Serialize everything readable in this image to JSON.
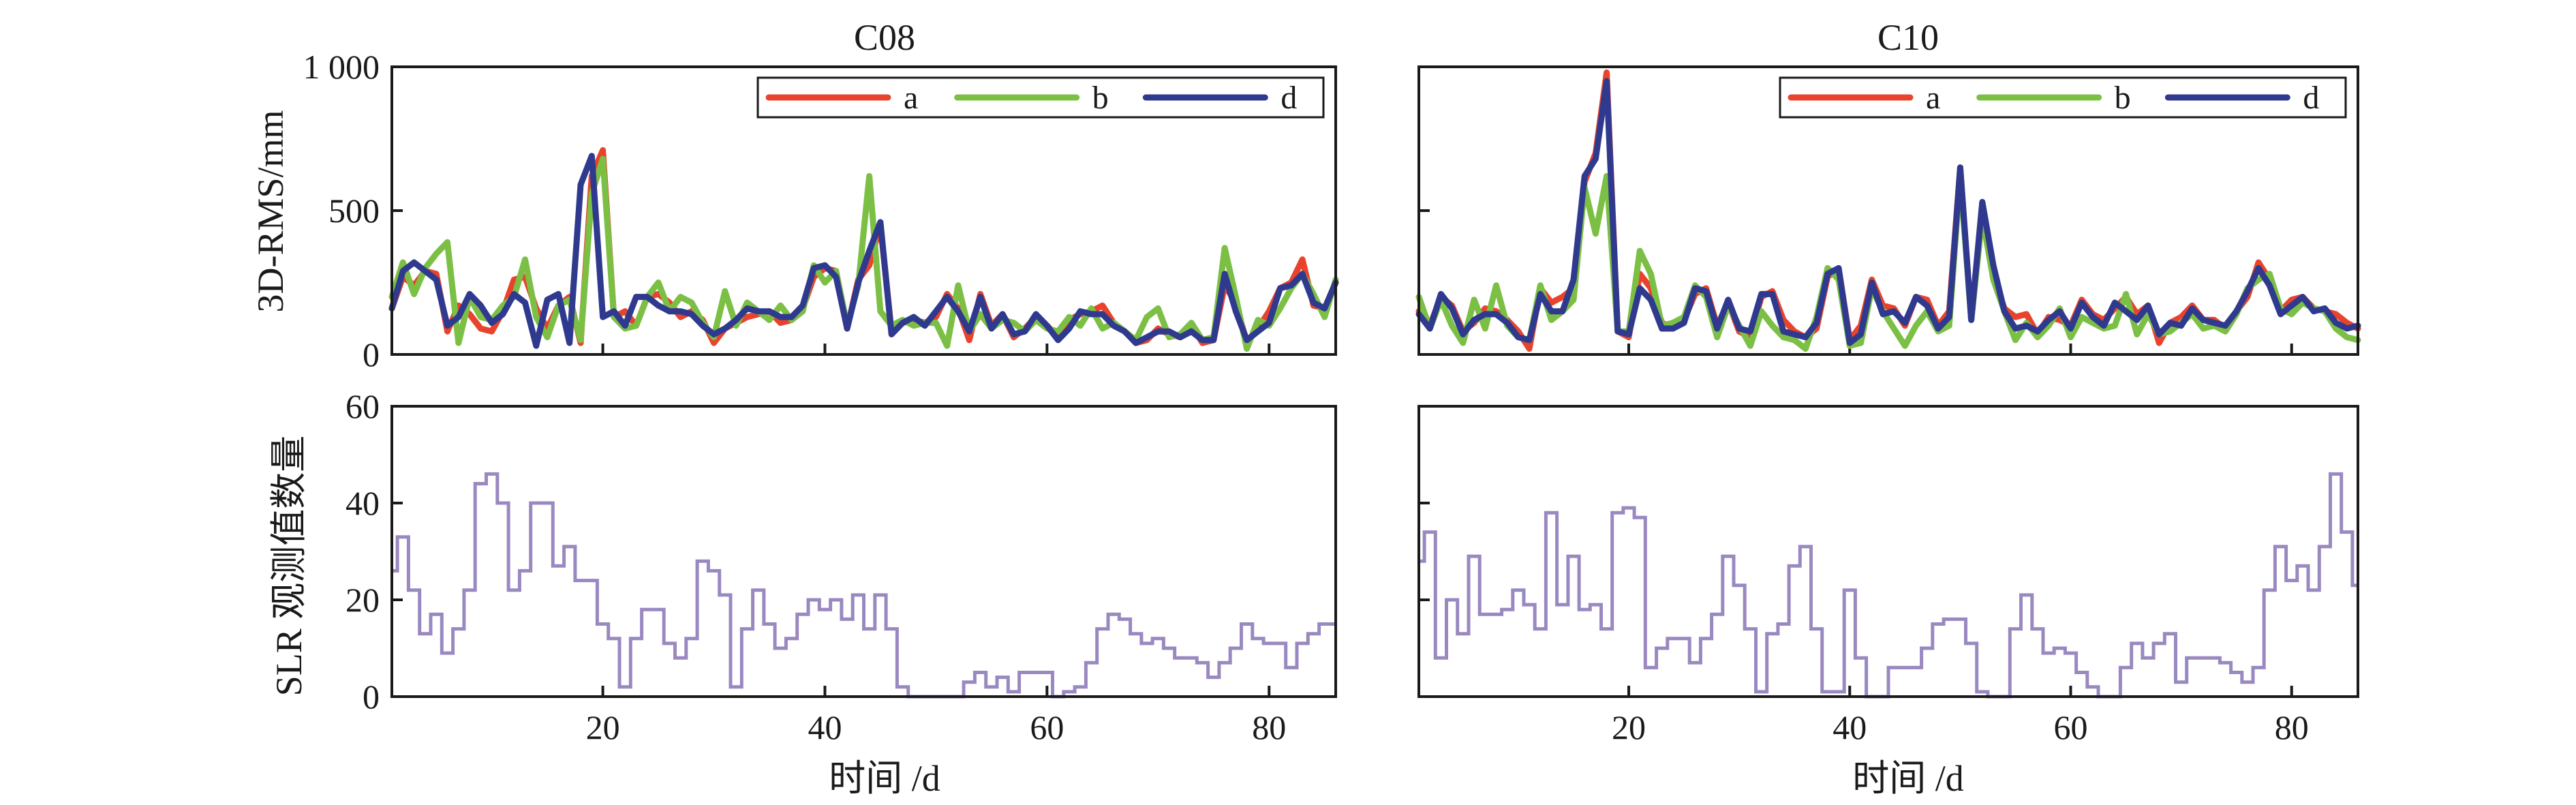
{
  "chart_data": [
    {
      "type": "line",
      "panel": "top-left",
      "title": "C08",
      "xlabel": "",
      "ylabel": "3D-RMS/mm",
      "xlim": [
        1,
        86
      ],
      "ylim": [
        0,
        1000
      ],
      "yticks": [
        0,
        500,
        1000
      ],
      "ytick_labels": [
        "0",
        "500",
        "1 000"
      ],
      "xticks": [
        20,
        40,
        60,
        80
      ],
      "xtick_labels": [],
      "legend": {
        "location": "top-right",
        "entries": [
          "a",
          "b",
          "d"
        ]
      },
      "x": [
        1,
        2,
        3,
        4,
        5,
        6,
        7,
        8,
        9,
        10,
        11,
        12,
        13,
        14,
        15,
        16,
        17,
        18,
        19,
        20,
        21,
        22,
        23,
        24,
        25,
        26,
        27,
        28,
        29,
        30,
        31,
        32,
        33,
        34,
        35,
        36,
        37,
        38,
        39,
        40,
        41,
        42,
        43,
        44,
        45,
        46,
        47,
        48,
        49,
        50,
        51,
        52,
        53,
        54,
        55,
        56,
        57,
        58,
        59,
        60,
        61,
        62,
        63,
        64,
        65,
        66,
        67,
        68,
        69,
        70,
        71,
        72,
        73,
        74,
        75,
        76,
        77,
        78,
        79,
        80,
        81,
        82,
        83,
        84,
        85,
        86
      ],
      "series": [
        {
          "name": "a",
          "color": "#e8432c",
          "values": [
            160,
            270,
            240,
            290,
            280,
            80,
            170,
            140,
            90,
            80,
            150,
            260,
            270,
            160,
            90,
            170,
            200,
            40,
            620,
            710,
            130,
            150,
            100,
            200,
            210,
            180,
            130,
            150,
            120,
            40,
            90,
            110,
            130,
            140,
            150,
            110,
            120,
            160,
            270,
            300,
            290,
            90,
            260,
            310,
            450,
            80,
            110,
            120,
            110,
            130,
            210,
            160,
            50,
            210,
            100,
            140,
            60,
            90,
            130,
            100,
            60,
            120,
            140,
            150,
            170,
            110,
            80,
            40,
            50,
            90,
            70,
            60,
            100,
            40,
            50,
            240,
            180,
            40,
            90,
            150,
            230,
            250,
            330,
            170,
            160,
            250
          ]
        },
        {
          "name": "b",
          "color": "#7cbf45",
          "values": [
            200,
            320,
            210,
            300,
            350,
            390,
            40,
            200,
            130,
            120,
            170,
            200,
            330,
            130,
            60,
            170,
            190,
            50,
            560,
            680,
            130,
            90,
            100,
            200,
            250,
            150,
            200,
            180,
            110,
            60,
            220,
            100,
            180,
            150,
            120,
            170,
            120,
            150,
            310,
            250,
            290,
            100,
            240,
            620,
            150,
            100,
            120,
            100,
            110,
            110,
            30,
            240,
            80,
            140,
            90,
            120,
            110,
            80,
            120,
            90,
            80,
            130,
            100,
            160,
            90,
            110,
            80,
            50,
            130,
            160,
            60,
            70,
            110,
            50,
            60,
            370,
            200,
            20,
            120,
            100,
            160,
            230,
            280,
            210,
            130,
            260
          ]
        },
        {
          "name": "d",
          "color": "#2f3a8f",
          "values": [
            160,
            290,
            320,
            290,
            260,
            100,
            130,
            210,
            170,
            110,
            140,
            210,
            180,
            30,
            190,
            210,
            40,
            590,
            690,
            130,
            150,
            100,
            200,
            200,
            170,
            150,
            150,
            140,
            100,
            70,
            90,
            120,
            160,
            150,
            150,
            130,
            130,
            170,
            300,
            310,
            270,
            90,
            250,
            360,
            460,
            70,
            110,
            130,
            100,
            150,
            200,
            150,
            80,
            200,
            90,
            140,
            70,
            80,
            140,
            100,
            50,
            90,
            150,
            140,
            140,
            100,
            80,
            40,
            60,
            80,
            80,
            60,
            80,
            50,
            50,
            280,
            150,
            50,
            80,
            110,
            230,
            240,
            280,
            180,
            160,
            250
          ]
        }
      ]
    },
    {
      "type": "line",
      "panel": "top-right",
      "title": "C10",
      "xlabel": "",
      "ylabel": "",
      "xlim": [
        1,
        86
      ],
      "ylim": [
        0,
        1000
      ],
      "yticks": [
        0,
        500,
        1000
      ],
      "ytick_labels": [],
      "xticks": [
        20,
        40,
        60,
        80
      ],
      "xtick_labels": [],
      "legend": {
        "location": "top-right",
        "entries": [
          "a",
          "b",
          "d"
        ]
      },
      "x": [
        1,
        2,
        3,
        4,
        5,
        6,
        7,
        8,
        9,
        10,
        11,
        12,
        13,
        14,
        15,
        16,
        17,
        18,
        19,
        20,
        21,
        22,
        23,
        24,
        25,
        26,
        27,
        28,
        29,
        30,
        31,
        32,
        33,
        34,
        35,
        36,
        37,
        38,
        39,
        40,
        41,
        42,
        43,
        44,
        45,
        46,
        47,
        48,
        49,
        50,
        51,
        52,
        53,
        54,
        55,
        56,
        57,
        58,
        59,
        60,
        61,
        62,
        63,
        64,
        65,
        66,
        67,
        68,
        69,
        70,
        71,
        72,
        73,
        74,
        75,
        76,
        77,
        78,
        79,
        80,
        81,
        82,
        83,
        84,
        85,
        86
      ],
      "series": [
        {
          "name": "a",
          "color": "#e8432c",
          "values": [
            150,
            100,
            200,
            170,
            80,
            110,
            160,
            150,
            120,
            80,
            20,
            230,
            180,
            200,
            230,
            600,
            700,
            980,
            80,
            60,
            280,
            230,
            110,
            90,
            120,
            210,
            230,
            100,
            180,
            80,
            60,
            200,
            220,
            120,
            80,
            60,
            90,
            270,
            300,
            50,
            100,
            260,
            170,
            160,
            100,
            200,
            190,
            100,
            150,
            650,
            120,
            500,
            270,
            160,
            130,
            140,
            70,
            130,
            120,
            100,
            190,
            140,
            120,
            160,
            200,
            140,
            170,
            40,
            110,
            130,
            170,
            120,
            120,
            90,
            150,
            200,
            320,
            260,
            150,
            190,
            200,
            160,
            150,
            140,
            110,
            90
          ]
        },
        {
          "name": "b",
          "color": "#7cbf45",
          "values": [
            200,
            90,
            190,
            100,
            40,
            190,
            90,
            240,
            100,
            60,
            50,
            240,
            120,
            150,
            190,
            580,
            420,
            620,
            80,
            80,
            360,
            280,
            100,
            110,
            130,
            240,
            200,
            60,
            170,
            100,
            30,
            150,
            100,
            60,
            50,
            20,
            130,
            300,
            260,
            30,
            40,
            230,
            150,
            90,
            30,
            100,
            150,
            80,
            100,
            620,
            120,
            480,
            260,
            150,
            50,
            110,
            60,
            100,
            160,
            60,
            130,
            110,
            90,
            100,
            210,
            70,
            140,
            70,
            80,
            110,
            140,
            90,
            100,
            80,
            140,
            230,
            260,
            280,
            160,
            140,
            180,
            160,
            150,
            90,
            60,
            50
          ]
        },
        {
          "name": "d",
          "color": "#2f3a8f",
          "values": [
            140,
            90,
            210,
            160,
            70,
            120,
            140,
            140,
            110,
            60,
            50,
            210,
            150,
            150,
            260,
            620,
            680,
            950,
            80,
            70,
            230,
            190,
            90,
            90,
            110,
            230,
            220,
            90,
            190,
            90,
            80,
            210,
            210,
            80,
            70,
            60,
            110,
            280,
            300,
            40,
            70,
            250,
            140,
            150,
            110,
            200,
            170,
            90,
            130,
            650,
            120,
            530,
            310,
            150,
            90,
            100,
            80,
            120,
            150,
            90,
            180,
            130,
            100,
            180,
            150,
            120,
            170,
            70,
            110,
            100,
            160,
            120,
            110,
            100,
            150,
            220,
            300,
            240,
            140,
            170,
            200,
            150,
            160,
            110,
            90,
            100
          ]
        }
      ]
    },
    {
      "type": "step",
      "panel": "bottom-left",
      "title": "",
      "xlabel": "时间 /d",
      "ylabel": "SLR 观测值数量",
      "xlim": [
        1,
        86
      ],
      "ylim": [
        0,
        60
      ],
      "yticks": [
        0,
        20,
        40,
        60
      ],
      "ytick_labels": [
        "0",
        "20",
        "40",
        "60"
      ],
      "xticks": [
        20,
        40,
        60,
        80
      ],
      "xtick_labels": [
        "20",
        "40",
        "60",
        "80"
      ],
      "color": "#9a88c0",
      "x": [
        1,
        2,
        3,
        4,
        5,
        6,
        7,
        8,
        9,
        10,
        11,
        12,
        13,
        14,
        15,
        16,
        17,
        18,
        19,
        20,
        21,
        22,
        23,
        24,
        25,
        26,
        27,
        28,
        29,
        30,
        31,
        32,
        33,
        34,
        35,
        36,
        37,
        38,
        39,
        40,
        41,
        42,
        43,
        44,
        45,
        46,
        47,
        48,
        49,
        50,
        51,
        52,
        53,
        54,
        55,
        56,
        57,
        58,
        59,
        60,
        61,
        62,
        63,
        64,
        65,
        66,
        67,
        68,
        69,
        70,
        71,
        72,
        73,
        74,
        75,
        76,
        77,
        78,
        79,
        80,
        81,
        82,
        83,
        84,
        85,
        86
      ],
      "values": [
        26,
        33,
        22,
        13,
        17,
        9,
        14,
        22,
        44,
        46,
        40,
        22,
        26,
        40,
        40,
        27,
        31,
        24,
        24,
        15,
        12,
        2,
        12,
        18,
        18,
        11,
        8,
        12,
        28,
        26,
        21,
        2,
        14,
        22,
        15,
        10,
        12,
        17,
        20,
        18,
        20,
        16,
        21,
        14,
        21,
        14,
        2,
        0,
        0,
        0,
        0,
        0,
        3,
        5,
        2,
        4,
        1,
        5,
        5,
        5,
        0,
        1,
        2,
        7,
        14,
        17,
        16,
        13,
        11,
        12,
        10,
        8,
        8,
        7,
        4,
        7,
        10,
        15,
        12,
        11,
        11,
        6,
        11,
        13,
        15,
        15
      ]
    },
    {
      "type": "step",
      "panel": "bottom-right",
      "title": "",
      "xlabel": "时间 /d",
      "ylabel": "",
      "xlim": [
        1,
        86
      ],
      "ylim": [
        0,
        60
      ],
      "yticks": [
        0,
        20,
        40,
        60
      ],
      "ytick_labels": [],
      "xticks": [
        20,
        40,
        60,
        80
      ],
      "xtick_labels": [
        "20",
        "40",
        "60",
        "80"
      ],
      "color": "#9a88c0",
      "x": [
        1,
        2,
        3,
        4,
        5,
        6,
        7,
        8,
        9,
        10,
        11,
        12,
        13,
        14,
        15,
        16,
        17,
        18,
        19,
        20,
        21,
        22,
        23,
        24,
        25,
        26,
        27,
        28,
        29,
        30,
        31,
        32,
        33,
        34,
        35,
        36,
        37,
        38,
        39,
        40,
        41,
        42,
        43,
        44,
        45,
        46,
        47,
        48,
        49,
        50,
        51,
        52,
        53,
        54,
        55,
        56,
        57,
        58,
        59,
        60,
        61,
        62,
        63,
        64,
        65,
        66,
        67,
        68,
        69,
        70,
        71,
        72,
        73,
        74,
        75,
        76,
        77,
        78,
        79,
        80,
        81,
        82,
        83,
        84,
        85,
        86
      ],
      "values": [
        28,
        34,
        8,
        20,
        13,
        29,
        17,
        17,
        18,
        22,
        19,
        14,
        38,
        19,
        29,
        18,
        19,
        14,
        38,
        39,
        37,
        6,
        10,
        12,
        12,
        7,
        12,
        17,
        29,
        23,
        14,
        1,
        13,
        15,
        27,
        31,
        14,
        1,
        1,
        22,
        8,
        0,
        0,
        6,
        6,
        6,
        10,
        15,
        16,
        16,
        11,
        1,
        0,
        0,
        14,
        21,
        14,
        9,
        10,
        9,
        5,
        2,
        0,
        0,
        6,
        11,
        8,
        11,
        13,
        3,
        8,
        8,
        8,
        7,
        5,
        3,
        6,
        22,
        31,
        24,
        27,
        22,
        31,
        46,
        34,
        23
      ]
    }
  ]
}
